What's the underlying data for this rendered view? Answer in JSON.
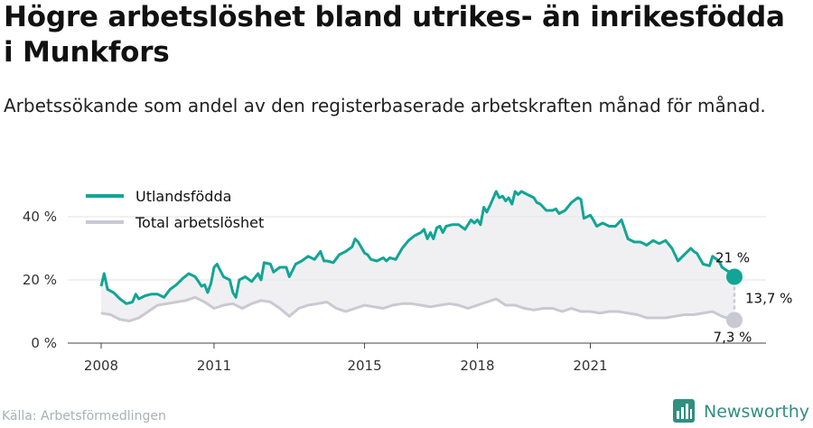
{
  "title": "Högre arbetslöshet bland utrikes- än inrikesfödda i Munkfors",
  "subtitle": "Arbetssökande som andel av den registerbaserade arbetskraften månad för månad.",
  "source": "Källa: Arbetsförmedlingen",
  "brand": "Newsworthy",
  "colors": {
    "foreign": "#12a595",
    "total": "#c9c9d2",
    "band": "#ebebee",
    "grid": "#e2e2e2",
    "brand": "#2f8f80"
  },
  "chart_data": {
    "type": "line",
    "ylim": [
      0,
      50
    ],
    "yticks": [
      0,
      20,
      40
    ],
    "ytick_labels": [
      "0 %",
      "20 %",
      "40 %"
    ],
    "xticks": [
      2008,
      2011,
      2015,
      2018,
      2021
    ],
    "xtick_labels": [
      "2008",
      "2011",
      "2015",
      "2018",
      "2021"
    ],
    "legend_position": "top-left",
    "grid": true,
    "last_value_labels": {
      "foreign": "21 %",
      "total": "7,3 %",
      "gap": "13,7 %"
    },
    "series": [
      {
        "key": "foreign",
        "name": "Utlandsfödda",
        "points": [
          [
            2008.0,
            18
          ],
          [
            2008.08,
            22
          ],
          [
            2008.17,
            17
          ],
          [
            2008.33,
            16
          ],
          [
            2008.5,
            14
          ],
          [
            2008.67,
            12.5
          ],
          [
            2008.83,
            13
          ],
          [
            2008.92,
            15.5
          ],
          [
            2009.0,
            14
          ],
          [
            2009.17,
            15
          ],
          [
            2009.33,
            15.5
          ],
          [
            2009.5,
            15.5
          ],
          [
            2009.67,
            14.5
          ],
          [
            2009.83,
            17
          ],
          [
            2010.0,
            18.5
          ],
          [
            2010.17,
            20.5
          ],
          [
            2010.33,
            22
          ],
          [
            2010.5,
            21
          ],
          [
            2010.67,
            18
          ],
          [
            2010.75,
            18.5
          ],
          [
            2010.83,
            16
          ],
          [
            2010.92,
            19
          ],
          [
            2011.0,
            24
          ],
          [
            2011.08,
            25
          ],
          [
            2011.25,
            21
          ],
          [
            2011.42,
            20
          ],
          [
            2011.5,
            16
          ],
          [
            2011.58,
            14.5
          ],
          [
            2011.67,
            20
          ],
          [
            2011.83,
            21
          ],
          [
            2012.0,
            19.5
          ],
          [
            2012.17,
            22
          ],
          [
            2012.25,
            20
          ],
          [
            2012.33,
            25.5
          ],
          [
            2012.5,
            25
          ],
          [
            2012.58,
            22.5
          ],
          [
            2012.75,
            24
          ],
          [
            2012.92,
            24
          ],
          [
            2013.0,
            21
          ],
          [
            2013.17,
            25
          ],
          [
            2013.33,
            26
          ],
          [
            2013.5,
            27.5
          ],
          [
            2013.67,
            26.5
          ],
          [
            2013.83,
            29
          ],
          [
            2013.92,
            26
          ],
          [
            2014.0,
            26
          ],
          [
            2014.17,
            25.5
          ],
          [
            2014.33,
            28
          ],
          [
            2014.5,
            29
          ],
          [
            2014.67,
            30.5
          ],
          [
            2014.75,
            33
          ],
          [
            2014.83,
            32
          ],
          [
            2015.0,
            28.5
          ],
          [
            2015.08,
            28
          ],
          [
            2015.17,
            26.5
          ],
          [
            2015.33,
            26
          ],
          [
            2015.5,
            27
          ],
          [
            2015.58,
            26
          ],
          [
            2015.67,
            27
          ],
          [
            2015.83,
            26.5
          ],
          [
            2016.0,
            30
          ],
          [
            2016.17,
            32.5
          ],
          [
            2016.33,
            34
          ],
          [
            2016.5,
            35
          ],
          [
            2016.58,
            36
          ],
          [
            2016.67,
            33
          ],
          [
            2016.75,
            35
          ],
          [
            2016.83,
            33
          ],
          [
            2016.92,
            36.5
          ],
          [
            2017.0,
            37
          ],
          [
            2017.08,
            35
          ],
          [
            2017.17,
            37
          ],
          [
            2017.33,
            37.5
          ],
          [
            2017.5,
            37.5
          ],
          [
            2017.67,
            36
          ],
          [
            2017.83,
            39
          ],
          [
            2017.92,
            38
          ],
          [
            2018.0,
            39
          ],
          [
            2018.08,
            37.5
          ],
          [
            2018.17,
            43
          ],
          [
            2018.25,
            41.5
          ],
          [
            2018.33,
            43.5
          ],
          [
            2018.5,
            48
          ],
          [
            2018.58,
            46
          ],
          [
            2018.67,
            46.5
          ],
          [
            2018.75,
            45
          ],
          [
            2018.83,
            46
          ],
          [
            2018.92,
            44
          ],
          [
            2019.0,
            48
          ],
          [
            2019.08,
            47
          ],
          [
            2019.17,
            48
          ],
          [
            2019.33,
            47
          ],
          [
            2019.5,
            46
          ],
          [
            2019.58,
            44.5
          ],
          [
            2019.67,
            44
          ],
          [
            2019.83,
            42
          ],
          [
            2020.0,
            42
          ],
          [
            2020.08,
            42.5
          ],
          [
            2020.17,
            41
          ],
          [
            2020.33,
            42
          ],
          [
            2020.5,
            44.5
          ],
          [
            2020.67,
            46
          ],
          [
            2020.75,
            45.5
          ],
          [
            2020.83,
            39.5
          ],
          [
            2021.0,
            40.5
          ],
          [
            2021.08,
            39
          ],
          [
            2021.17,
            37
          ],
          [
            2021.33,
            38
          ],
          [
            2021.5,
            37
          ],
          [
            2021.67,
            37
          ],
          [
            2021.83,
            39
          ],
          [
            2022.0,
            33
          ],
          [
            2022.17,
            32
          ],
          [
            2022.33,
            32
          ],
          [
            2022.5,
            31
          ],
          [
            2022.67,
            32.5
          ],
          [
            2022.83,
            31.5
          ],
          [
            2023.0,
            32.5
          ],
          [
            2023.17,
            30
          ],
          [
            2023.33,
            26
          ],
          [
            2023.5,
            28
          ],
          [
            2023.67,
            30
          ],
          [
            2023.75,
            29
          ],
          [
            2023.83,
            28.5
          ],
          [
            2024.0,
            25
          ],
          [
            2024.17,
            24.5
          ],
          [
            2024.25,
            27.5
          ],
          [
            2024.42,
            26
          ],
          [
            2024.5,
            24
          ],
          [
            2024.75,
            22
          ],
          [
            2024.83,
            21
          ]
        ]
      },
      {
        "key": "total",
        "name": "Total arbetslöshet",
        "points": [
          [
            2008.0,
            9.5
          ],
          [
            2008.25,
            9
          ],
          [
            2008.5,
            7.5
          ],
          [
            2008.75,
            7
          ],
          [
            2009.0,
            8
          ],
          [
            2009.25,
            10
          ],
          [
            2009.5,
            12
          ],
          [
            2009.75,
            12.5
          ],
          [
            2010.0,
            13
          ],
          [
            2010.25,
            13.5
          ],
          [
            2010.5,
            14.5
          ],
          [
            2010.75,
            13
          ],
          [
            2011.0,
            11
          ],
          [
            2011.25,
            12
          ],
          [
            2011.5,
            12.5
          ],
          [
            2011.75,
            11
          ],
          [
            2012.0,
            12.5
          ],
          [
            2012.25,
            13.5
          ],
          [
            2012.5,
            13
          ],
          [
            2012.75,
            11
          ],
          [
            2013.0,
            8.5
          ],
          [
            2013.25,
            11
          ],
          [
            2013.5,
            12
          ],
          [
            2013.75,
            12.5
          ],
          [
            2014.0,
            13
          ],
          [
            2014.25,
            11
          ],
          [
            2014.5,
            10
          ],
          [
            2014.75,
            11
          ],
          [
            2015.0,
            12
          ],
          [
            2015.25,
            11.5
          ],
          [
            2015.5,
            11
          ],
          [
            2015.75,
            12
          ],
          [
            2016.0,
            12.5
          ],
          [
            2016.25,
            12.5
          ],
          [
            2016.5,
            12
          ],
          [
            2016.75,
            11.5
          ],
          [
            2017.0,
            12
          ],
          [
            2017.25,
            12.5
          ],
          [
            2017.5,
            12
          ],
          [
            2017.75,
            11
          ],
          [
            2018.0,
            12
          ],
          [
            2018.25,
            13
          ],
          [
            2018.5,
            14
          ],
          [
            2018.75,
            12
          ],
          [
            2019.0,
            12
          ],
          [
            2019.25,
            11
          ],
          [
            2019.5,
            10.5
          ],
          [
            2019.75,
            11
          ],
          [
            2020.0,
            11
          ],
          [
            2020.25,
            10
          ],
          [
            2020.5,
            11
          ],
          [
            2020.75,
            10
          ],
          [
            2021.0,
            10
          ],
          [
            2021.25,
            9.5
          ],
          [
            2021.5,
            10
          ],
          [
            2021.75,
            10
          ],
          [
            2022.0,
            9.5
          ],
          [
            2022.25,
            9
          ],
          [
            2022.5,
            8
          ],
          [
            2022.75,
            8
          ],
          [
            2023.0,
            8
          ],
          [
            2023.25,
            8.5
          ],
          [
            2023.5,
            9
          ],
          [
            2023.75,
            9
          ],
          [
            2024.0,
            9.5
          ],
          [
            2024.25,
            10
          ],
          [
            2024.5,
            8.5
          ],
          [
            2024.75,
            7.5
          ],
          [
            2024.83,
            7.3
          ]
        ]
      }
    ]
  }
}
